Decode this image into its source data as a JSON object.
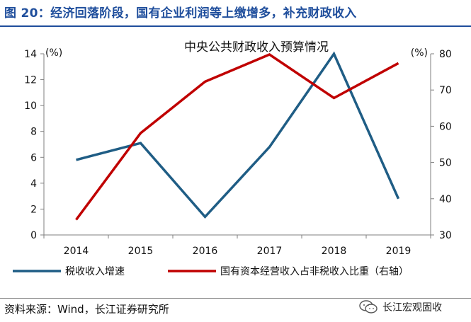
{
  "figure": {
    "title": "图 20：经济回落阶段，国有企业利润等上缴增多，补充财政收入",
    "source": "资料来源：Wind，长江证券研究所",
    "watermark": "长江宏观固收"
  },
  "chart_data": {
    "type": "line",
    "title": "中央公共财政收入预算情况",
    "categories": [
      "2014",
      "2015",
      "2016",
      "2017",
      "2018",
      "2019"
    ],
    "left_axis": {
      "unit_label": "(%)",
      "ylim": [
        0,
        14
      ],
      "ticks": [
        0,
        2,
        4,
        6,
        8,
        10,
        12,
        14
      ]
    },
    "right_axis": {
      "unit_label": "(%)",
      "ylim": [
        30,
        80
      ],
      "ticks": [
        30,
        40,
        50,
        60,
        70,
        80
      ]
    },
    "series": [
      {
        "name": "税收收入增速",
        "axis": "left",
        "color": "#1f5d85",
        "values": [
          5.8,
          7.1,
          1.4,
          6.8,
          14.0,
          2.8
        ]
      },
      {
        "name": "国有资本经营收入占非税收入比重（右轴）",
        "axis": "right",
        "color": "#c00000",
        "values": [
          34.2,
          58.1,
          72.3,
          79.8,
          67.8,
          77.4
        ]
      }
    ],
    "grid": false,
    "legend_position": "bottom"
  }
}
